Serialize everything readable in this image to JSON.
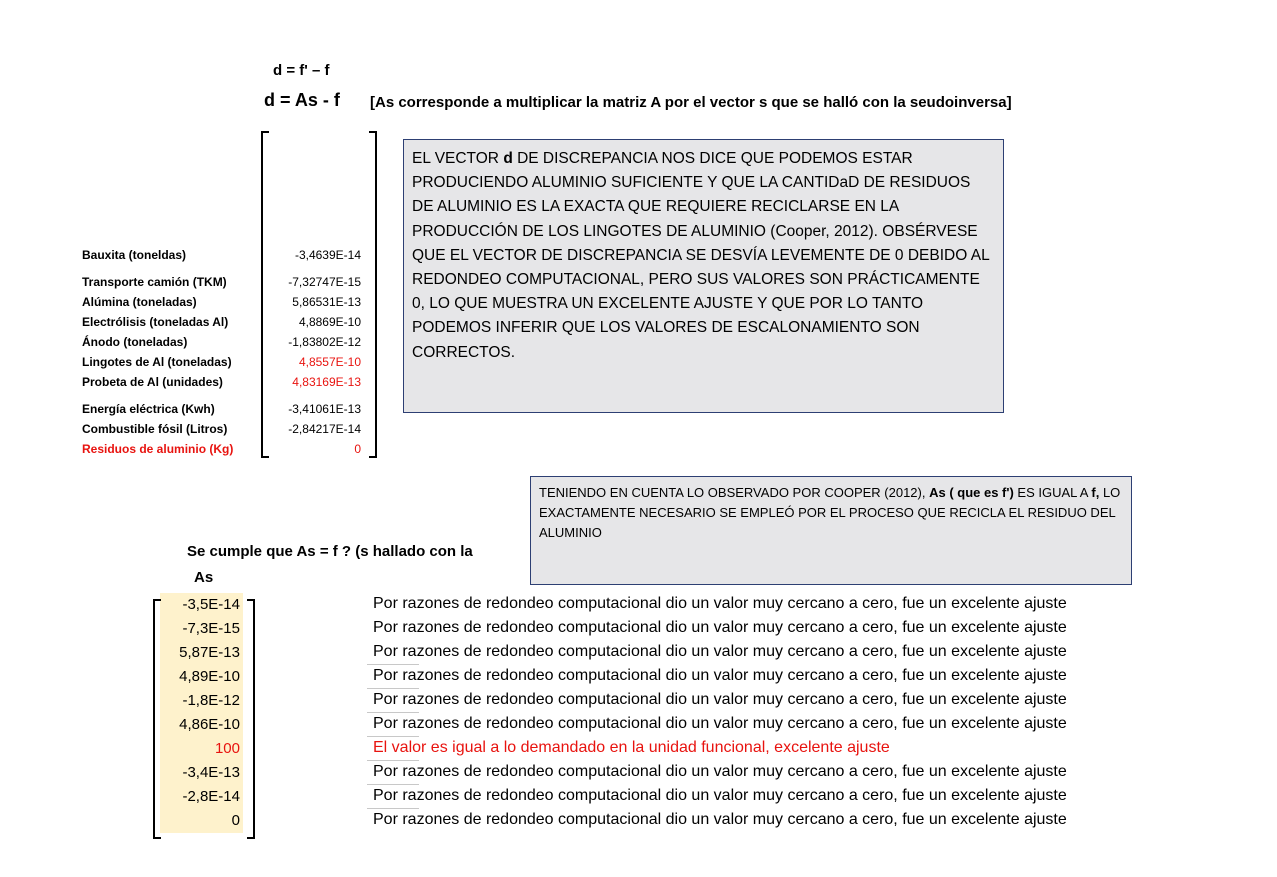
{
  "equations": {
    "line1": "d = f' – f",
    "line2": "d = As - f",
    "note": "[As corresponde a multiplicar la matriz A por el vector  s que se halló con la seudoinversa]"
  },
  "discrepancy_rows": [
    {
      "label": "Bauxita (toneldas)",
      "value": "-3,4639E-14",
      "red_label": false,
      "red_value": false
    },
    {
      "label": "Transporte camión (TKM)",
      "value": "-7,32747E-15",
      "red_label": false,
      "red_value": false
    },
    {
      "label": "Alúmina (toneladas)",
      "value": "5,86531E-13",
      "red_label": false,
      "red_value": false
    },
    {
      "label": "Electrólisis (toneladas Al)",
      "value": "4,8869E-10",
      "red_label": false,
      "red_value": false
    },
    {
      "label": "Ánodo (toneladas)",
      "value": "-1,83802E-12",
      "red_label": false,
      "red_value": false
    },
    {
      "label": "Lingotes de Al (toneladas)",
      "value": "4,8557E-10",
      "red_label": false,
      "red_value": true
    },
    {
      "label": "Probeta de Al (unidades)",
      "value": "4,83169E-13",
      "red_label": false,
      "red_value": true
    },
    {
      "label": "Energía eléctrica (Kwh)",
      "value": "-3,41061E-13",
      "red_label": false,
      "red_value": false
    },
    {
      "label": "Combustible fósil (Litros)",
      "value": "-2,84217E-14",
      "red_label": false,
      "red_value": false
    },
    {
      "label": "Residuos de aluminio (Kg)",
      "value": "0",
      "red_label": true,
      "red_value": true
    }
  ],
  "box1": {
    "p1": "EL VECTOR ",
    "bold": "d",
    "p2": " DE DISCREPANCIA NOS DICE QUE PODEMOS ESTAR PRODUCIENDO ALUMINIO SUFICIENTE  Y QUE LA CANTIDaD DE RESIDUOS DE ALUMINIO ES LA EXACTA QUE REQUIERE RECICLARSE EN LA PRODUCCIÓN DE LOS LINGOTES DE ALUMINIO (Cooper, 2012). OBSÉRVESE QUE EL VECTOR DE DISCREPANCIA SE DESVÍA LEVEMENTE DE 0 DEBIDO AL REDONDEO COMPUTACIONAL, PERO SUS VALORES SON PRÁCTICAMENTE 0, LO QUE MUESTRA UN EXCELENTE AJUSTE Y QUE POR LO TANTO PODEMOS INFERIR QUE LOS VALORES DE ESCALONAMIENTO SON CORRECTOS."
  },
  "box2": {
    "p1": "TENIENDO EN CUENTA LO OBSERVADO POR COOPER (2012), ",
    "bold1": "As ( que es f')",
    "p2": " ES IGUAL A ",
    "bold2": "f,",
    "p3": " LO EXACTAMENTE NECESARIO SE EMPLEÓ POR EL PROCESO QUE RECICLA EL RESIDUO DEL ALUMINIO"
  },
  "check": {
    "heading": "Se cumple que As = f ? (s hallado con la",
    "column_header": "As"
  },
  "as_rows": [
    {
      "value": "-3,5E-14",
      "comment": "Por razones de redondeo computacional dio un valor muy cercano a cero, fue un excelente ajuste",
      "red": false
    },
    {
      "value": "-7,3E-15",
      "comment": "Por razones de redondeo computacional dio un valor muy cercano a cero, fue un excelente ajuste",
      "red": false
    },
    {
      "value": "5,87E-13",
      "comment": "Por razones de redondeo computacional dio un valor muy cercano a cero, fue un excelente ajuste",
      "red": false
    },
    {
      "value": "4,89E-10",
      "comment": "Por razones de redondeo computacional dio un valor muy cercano a cero, fue un excelente ajuste",
      "red": false
    },
    {
      "value": "-1,8E-12",
      "comment": "Por razones de redondeo computacional dio un valor muy cercano a cero, fue un excelente ajuste",
      "red": false
    },
    {
      "value": "4,86E-10",
      "comment": "Por razones de redondeo computacional dio un valor muy cercano a cero, fue un excelente ajuste",
      "red": false
    },
    {
      "value": "100",
      "comment": "El valor es igual a lo demandado en la unidad funcional, excelente ajuste",
      "red": true
    },
    {
      "value": "-3,4E-13",
      "comment": "Por razones de redondeo computacional dio un valor muy cercano a cero, fue un excelente ajuste",
      "red": false
    },
    {
      "value": "-2,8E-14",
      "comment": "Por razones de redondeo computacional dio un valor muy cercano a cero, fue un excelente ajuste",
      "red": false
    },
    {
      "value": "0",
      "comment": "Por razones de redondeo computacional dio un valor muy cercano a cero, fue un excelente ajuste",
      "red": false
    }
  ],
  "colors": {
    "red": "#e8130f",
    "box_fill": "#e6e6e8",
    "box_border": "#2d3f73",
    "highlight": "#fef2cc"
  }
}
